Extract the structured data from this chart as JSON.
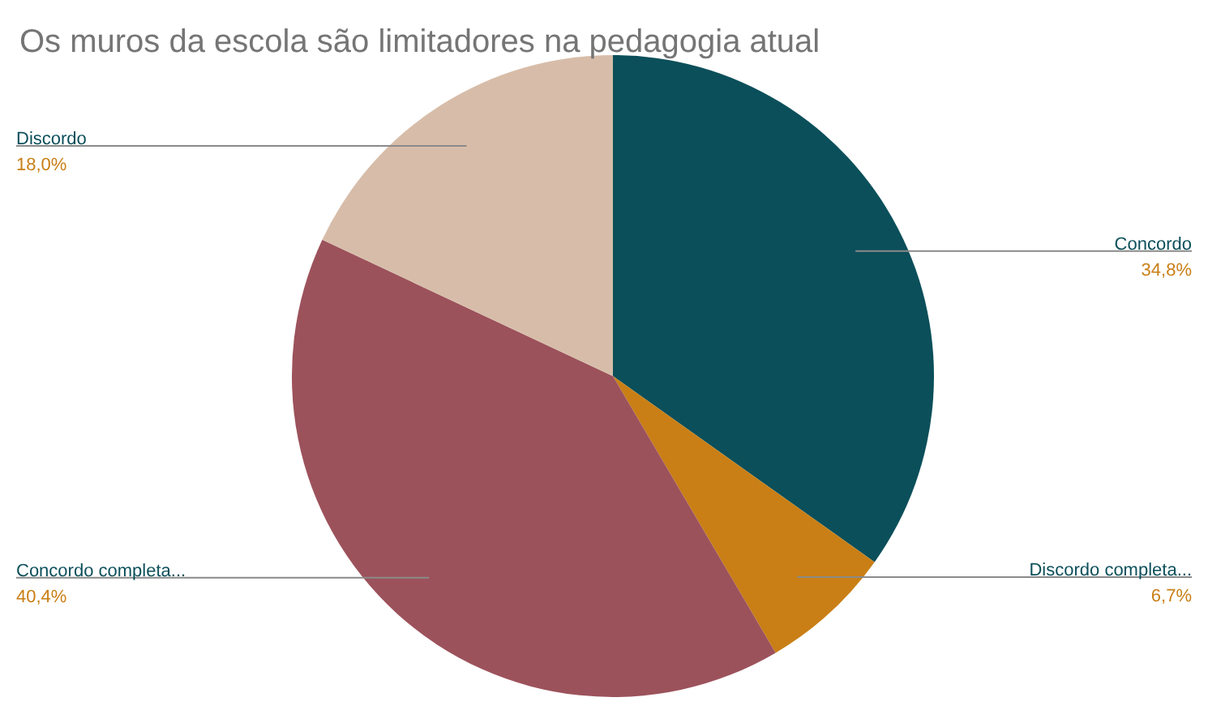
{
  "chart_data": {
    "type": "pie",
    "title": "Os muros da escola são limitadores na pedagogia atual",
    "categories": [
      "Concordo",
      "Discordo completa...",
      "Concordo completa...",
      "Discordo"
    ],
    "values": [
      34.8,
      6.7,
      40.4,
      18.0
    ],
    "value_labels": [
      "34,8%",
      "6,7%",
      "40,4%",
      "18,0%"
    ],
    "colors": [
      "#0b4f5a",
      "#c97f15",
      "#9c525b",
      "#d7bda9"
    ],
    "legend": false
  }
}
